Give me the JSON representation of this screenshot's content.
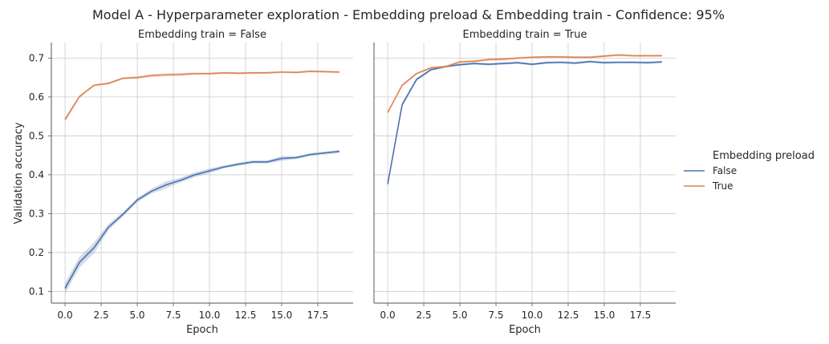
{
  "title": "Model A - Hyperparameter exploration - Embedding preload & Embedding train - Confidence: 95%",
  "chart_data": {
    "type": "line",
    "xlabel": "Epoch",
    "ylabel": "Validation accuracy",
    "xlim": [
      -0.95,
      19.95
    ],
    "ylim": [
      0.07,
      0.74
    ],
    "x_ticks": [
      "0.0",
      "2.5",
      "5.0",
      "7.5",
      "10.0",
      "12.5",
      "15.0",
      "17.5"
    ],
    "y_ticks": [
      "0.1",
      "0.2",
      "0.3",
      "0.4",
      "0.5",
      "0.6",
      "0.7"
    ],
    "grid": true,
    "legend": {
      "title": "Embedding preload",
      "placement": "right",
      "entries": [
        {
          "label": "False",
          "color": "#4c72b0"
        },
        {
          "label": "True",
          "color": "#dd8452"
        }
      ]
    },
    "x": [
      0,
      1,
      2,
      3,
      4,
      5,
      6,
      7,
      8,
      9,
      10,
      11,
      12,
      13,
      14,
      15,
      16,
      17,
      18,
      19
    ],
    "panels": [
      {
        "title": "Embedding train = False",
        "series": [
          {
            "color": "#4c72b0",
            "values": [
              0.108,
              0.175,
              0.212,
              0.265,
              0.298,
              0.335,
              0.358,
              0.374,
              0.386,
              0.4,
              0.41,
              0.42,
              0.427,
              0.433,
              0.433,
              0.442,
              0.444,
              0.452,
              0.456,
              0.46
            ],
            "ci": [
              0.014,
              0.014,
              0.014,
              0.008,
              0.006,
              0.006,
              0.006,
              0.009,
              0.006,
              0.006,
              0.006,
              0.004,
              0.004,
              0.004,
              0.004,
              0.006,
              0.004,
              0.004,
              0.004,
              0.004
            ]
          },
          {
            "color": "#dd8452",
            "values": [
              0.542,
              0.601,
              0.63,
              0.635,
              0.648,
              0.65,
              0.655,
              0.657,
              0.658,
              0.66,
              0.66,
              0.662,
              0.661,
              0.662,
              0.662,
              0.664,
              0.663,
              0.666,
              0.665,
              0.664
            ],
            "ci": [
              0.006,
              0.004,
              0.003,
              0.003,
              0.003,
              0.004,
              0.004,
              0.004,
              0.004,
              0.003,
              0.003,
              0.003,
              0.003,
              0.003,
              0.003,
              0.003,
              0.003,
              0.003,
              0.003,
              0.003
            ]
          }
        ]
      },
      {
        "title": "Embedding train = True",
        "series": [
          {
            "color": "#4c72b0",
            "values": [
              0.376,
              0.58,
              0.645,
              0.67,
              0.678,
              0.683,
              0.686,
              0.684,
              0.686,
              0.688,
              0.684,
              0.688,
              0.689,
              0.687,
              0.691,
              0.688,
              0.689,
              0.689,
              0.688,
              0.69
            ],
            "ci": [
              0.004,
              0.006,
              0.004,
              0.003,
              0.003,
              0.003,
              0.003,
              0.003,
              0.003,
              0.003,
              0.003,
              0.003,
              0.003,
              0.003,
              0.003,
              0.003,
              0.003,
              0.003,
              0.003,
              0.003
            ]
          },
          {
            "color": "#dd8452",
            "values": [
              0.56,
              0.63,
              0.66,
              0.675,
              0.678,
              0.69,
              0.692,
              0.696,
              0.697,
              0.7,
              0.702,
              0.703,
              0.703,
              0.702,
              0.702,
              0.705,
              0.708,
              0.706,
              0.706,
              0.706
            ],
            "ci": [
              0.004,
              0.003,
              0.003,
              0.003,
              0.003,
              0.003,
              0.003,
              0.003,
              0.003,
              0.003,
              0.003,
              0.003,
              0.003,
              0.003,
              0.003,
              0.003,
              0.003,
              0.003,
              0.003,
              0.003
            ]
          }
        ]
      }
    ]
  }
}
